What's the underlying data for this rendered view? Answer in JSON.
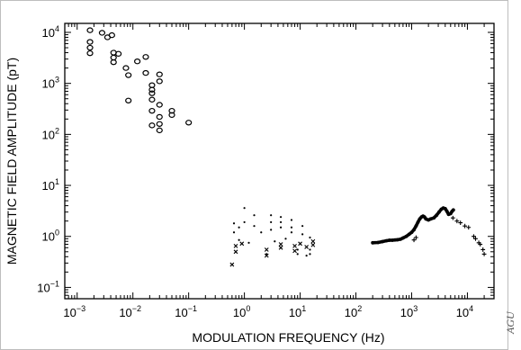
{
  "chart_data": {
    "type": "scatter",
    "xlabel": "MODULATION FREQUENCY (Hz)",
    "ylabel": "MAGNETIC FIELD AMPLITUDE (pT)",
    "x_scale": "log",
    "y_scale": "log",
    "xlim": [
      0.0006,
      30000
    ],
    "ylim": [
      0.06,
      15000
    ],
    "x_ticks": [
      {
        "value": 0.001,
        "base": "10",
        "exp": "−3"
      },
      {
        "value": 0.01,
        "base": "10",
        "exp": "−2"
      },
      {
        "value": 0.1,
        "base": "10",
        "exp": "−1"
      },
      {
        "value": 1,
        "base": "10",
        "exp": "0"
      },
      {
        "value": 10,
        "base": "10",
        "exp": "1"
      },
      {
        "value": 100,
        "base": "10",
        "exp": "2"
      },
      {
        "value": 1000,
        "base": "10",
        "exp": "3"
      },
      {
        "value": 10000,
        "base": "10",
        "exp": "4"
      }
    ],
    "y_ticks": [
      {
        "value": 0.1,
        "base": "10",
        "exp": "−1"
      },
      {
        "value": 1,
        "base": "10",
        "exp": "0"
      },
      {
        "value": 10,
        "base": "10",
        "exp": "1"
      },
      {
        "value": 100,
        "base": "10",
        "exp": "2"
      },
      {
        "value": 1000,
        "base": "10",
        "exp": "3"
      },
      {
        "value": 10000,
        "base": "10",
        "exp": "4"
      }
    ],
    "grid": false,
    "series": [
      {
        "marker": "circle",
        "points": [
          [
            0.0017,
            11000
          ],
          [
            0.0017,
            6500
          ],
          [
            0.0017,
            5000
          ],
          [
            0.0017,
            3900
          ],
          [
            0.0028,
            9800
          ],
          [
            0.0035,
            8000
          ],
          [
            0.0042,
            8800
          ],
          [
            0.0045,
            4000
          ],
          [
            0.0045,
            3200
          ],
          [
            0.0045,
            2600
          ],
          [
            0.0055,
            3800
          ],
          [
            0.0075,
            2000
          ],
          [
            0.0083,
            1450
          ],
          [
            0.0083,
            460
          ],
          [
            0.012,
            2700
          ],
          [
            0.017,
            3300
          ],
          [
            0.017,
            1600
          ],
          [
            0.022,
            920
          ],
          [
            0.022,
            750
          ],
          [
            0.022,
            640
          ],
          [
            0.022,
            480
          ],
          [
            0.022,
            290
          ],
          [
            0.022,
            150
          ],
          [
            0.03,
            1500
          ],
          [
            0.03,
            1100
          ],
          [
            0.03,
            380
          ],
          [
            0.03,
            220
          ],
          [
            0.03,
            160
          ],
          [
            0.03,
            120
          ],
          [
            0.05,
            290
          ],
          [
            0.05,
            240
          ],
          [
            0.1,
            170
          ]
        ]
      },
      {
        "marker": "dot",
        "points": [
          [
            0.65,
            1.8
          ],
          [
            0.65,
            1.2
          ],
          [
            0.8,
            1.5
          ],
          [
            0.8,
            0.85
          ],
          [
            1.0,
            3.6
          ],
          [
            1.0,
            1.9
          ],
          [
            1.2,
            0.75
          ],
          [
            1.5,
            2.6
          ],
          [
            1.5,
            1.6
          ],
          [
            2.0,
            1.2
          ],
          [
            2.5,
            0.45
          ],
          [
            3.0,
            2.6
          ],
          [
            3.0,
            1.9
          ],
          [
            3.0,
            1.35
          ],
          [
            3.5,
            0.8
          ],
          [
            4.5,
            2.4
          ],
          [
            4.5,
            1.9
          ],
          [
            4.5,
            1.5
          ],
          [
            5.5,
            0.9
          ],
          [
            7.0,
            2.1
          ],
          [
            7.0,
            1.5
          ],
          [
            7.0,
            1.2
          ],
          [
            9.0,
            0.55
          ],
          [
            9.0,
            0.45
          ],
          [
            11.0,
            1.6
          ],
          [
            11.0,
            1.1
          ],
          [
            13.0,
            0.42
          ],
          [
            15.0,
            0.95
          ],
          [
            15.0,
            0.55
          ],
          [
            15.0,
            0.45
          ]
        ]
      },
      {
        "marker": "x",
        "points": [
          [
            0.6,
            0.28
          ],
          [
            0.7,
            0.65
          ],
          [
            0.7,
            0.5
          ],
          [
            0.9,
            0.72
          ],
          [
            2.5,
            0.55
          ],
          [
            2.5,
            0.42
          ],
          [
            4.5,
            0.6
          ],
          [
            4.5,
            0.7
          ],
          [
            8.0,
            0.65
          ],
          [
            8.0,
            0.52
          ],
          [
            10.0,
            0.72
          ],
          [
            13.0,
            0.62
          ],
          [
            17.0,
            0.8
          ],
          [
            17.0,
            0.68
          ]
        ]
      },
      {
        "marker": "dense-dot",
        "points": [
          [
            200,
            0.75
          ],
          [
            250,
            0.76
          ],
          [
            300,
            0.79
          ],
          [
            350,
            0.82
          ],
          [
            400,
            0.84
          ],
          [
            450,
            0.84
          ],
          [
            500,
            0.85
          ],
          [
            560,
            0.86
          ],
          [
            630,
            0.88
          ],
          [
            700,
            0.93
          ],
          [
            800,
            1.0
          ],
          [
            900,
            1.1
          ],
          [
            1000,
            1.2
          ],
          [
            1100,
            1.35
          ],
          [
            1200,
            1.6
          ],
          [
            1300,
            1.9
          ],
          [
            1400,
            2.2
          ],
          [
            1500,
            2.4
          ],
          [
            1600,
            2.5
          ],
          [
            1700,
            2.4
          ],
          [
            1800,
            2.2
          ],
          [
            2000,
            2.1
          ],
          [
            2200,
            2.2
          ],
          [
            2500,
            2.3
          ],
          [
            2800,
            2.6
          ],
          [
            3100,
            3.0
          ],
          [
            3400,
            3.4
          ],
          [
            3700,
            3.6
          ],
          [
            4000,
            3.5
          ],
          [
            4300,
            3.1
          ],
          [
            4600,
            2.7
          ],
          [
            5000,
            2.8
          ],
          [
            5300,
            3.1
          ],
          [
            5600,
            3.3
          ]
        ]
      },
      {
        "marker": "plus",
        "points": [
          [
            1100,
            0.85
          ],
          [
            1200,
            0.95
          ],
          [
            5500,
            2.3
          ],
          [
            6500,
            2.0
          ],
          [
            7500,
            1.85
          ],
          [
            9000,
            1.6
          ],
          [
            10500,
            1.5
          ],
          [
            13000,
            1.0
          ],
          [
            14000,
            0.9
          ],
          [
            16000,
            0.75
          ],
          [
            17000,
            0.7
          ],
          [
            19000,
            0.55
          ],
          [
            20000,
            0.45
          ]
        ]
      }
    ]
  },
  "watermark": "AGU"
}
